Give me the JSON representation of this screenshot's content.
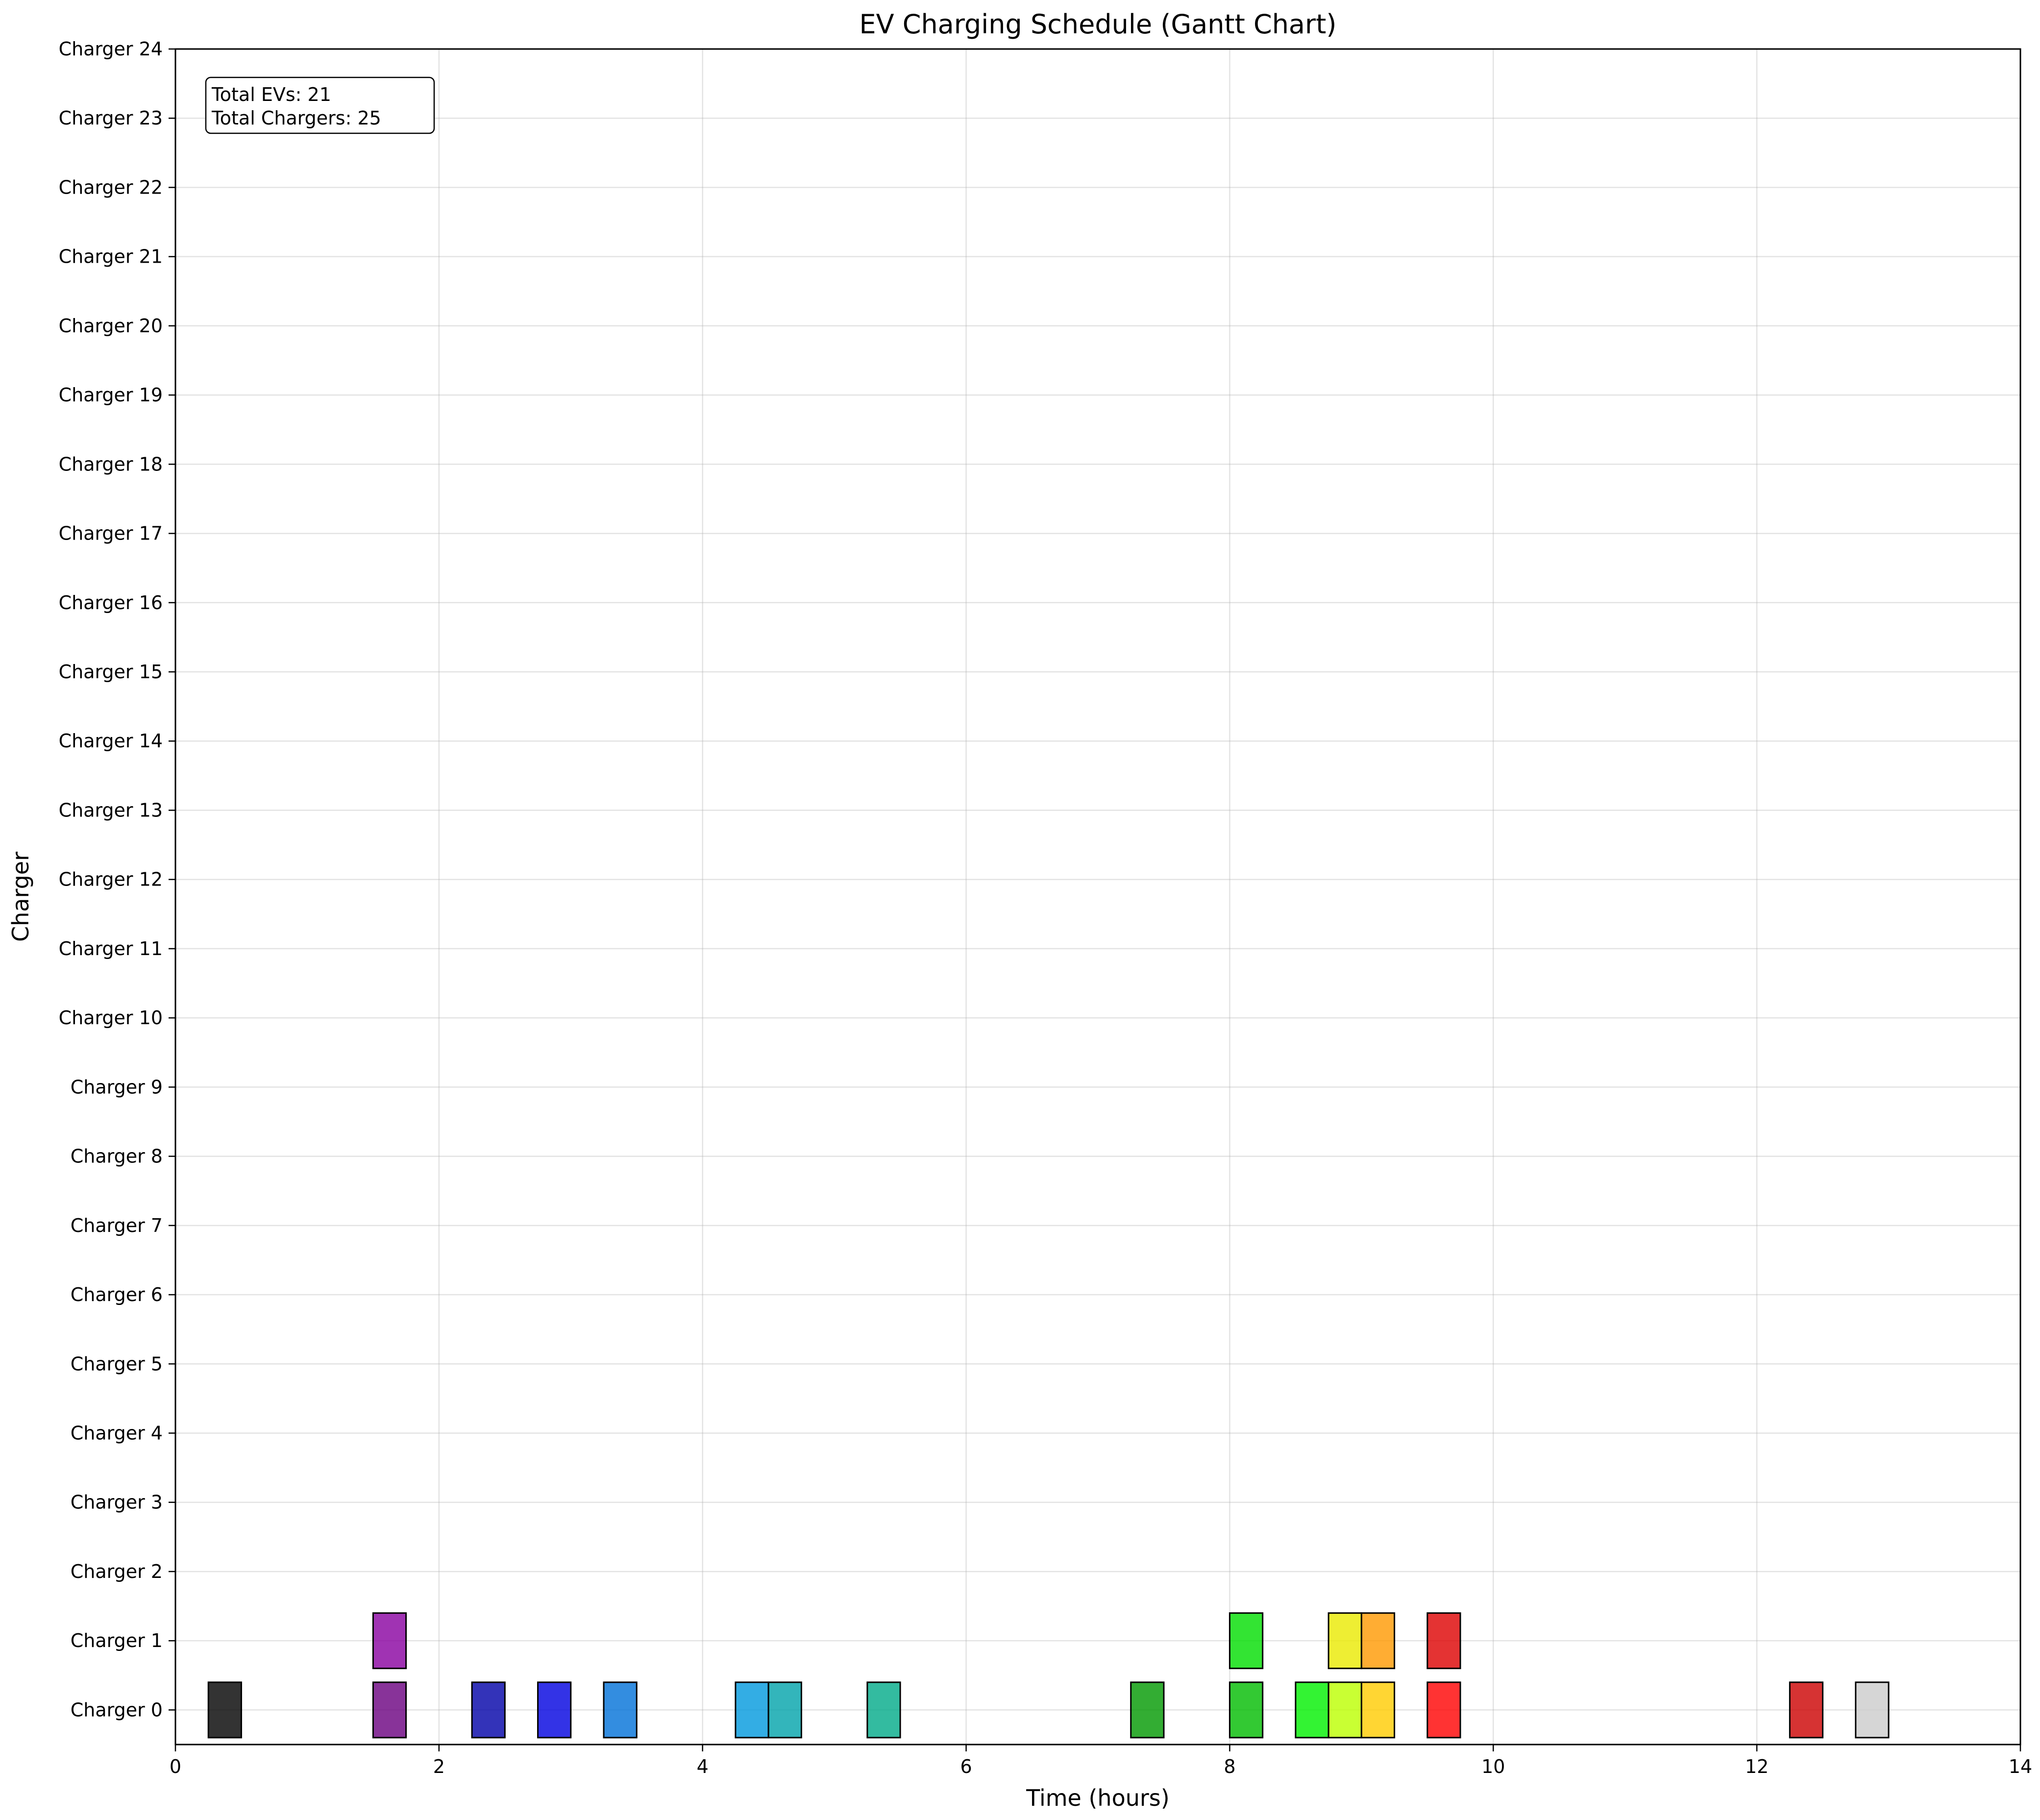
{
  "chart_data": {
    "type": "gantt",
    "title": "EV Charging Schedule (Gantt Chart)",
    "xlabel": "Time (hours)",
    "ylabel": "Charger",
    "xlim": [
      0,
      14
    ],
    "x_ticks": [
      0,
      2,
      4,
      6,
      8,
      10,
      12,
      14
    ],
    "y_categories": [
      "Charger 0",
      "Charger 1",
      "Charger 2",
      "Charger 3",
      "Charger 4",
      "Charger 5",
      "Charger 6",
      "Charger 7",
      "Charger 8",
      "Charger 9",
      "Charger 10",
      "Charger 11",
      "Charger 12",
      "Charger 13",
      "Charger 14",
      "Charger 15",
      "Charger 16",
      "Charger 17",
      "Charger 18",
      "Charger 19",
      "Charger 20",
      "Charger 21",
      "Charger 22",
      "Charger 23",
      "Charger 24"
    ],
    "grid": true,
    "annotation": {
      "position": "top-left",
      "lines": [
        "Total EVs: 21",
        "Total Chargers: 25"
      ]
    },
    "tasks": [
      {
        "charger": 0,
        "start": 0.25,
        "end": 0.5,
        "color": "#000000"
      },
      {
        "charger": 0,
        "start": 1.5,
        "end": 1.75,
        "color": "#6a0080"
      },
      {
        "charger": 1,
        "start": 1.5,
        "end": 1.75,
        "color": "#8800a0"
      },
      {
        "charger": 0,
        "start": 2.25,
        "end": 2.5,
        "color": "#0000a8"
      },
      {
        "charger": 0,
        "start": 2.75,
        "end": 3.0,
        "color": "#0000e0"
      },
      {
        "charger": 0,
        "start": 3.25,
        "end": 3.5,
        "color": "#0070d8"
      },
      {
        "charger": 0,
        "start": 4.25,
        "end": 4.5,
        "color": "#0098dd"
      },
      {
        "charger": 0,
        "start": 4.5,
        "end": 4.75,
        "color": "#00a2aa"
      },
      {
        "charger": 0,
        "start": 5.25,
        "end": 5.5,
        "color": "#00aa88"
      },
      {
        "charger": 0,
        "start": 7.25,
        "end": 7.5,
        "color": "#009900"
      },
      {
        "charger": 0,
        "start": 8.0,
        "end": 8.25,
        "color": "#00bb00"
      },
      {
        "charger": 1,
        "start": 8.0,
        "end": 8.25,
        "color": "#00dd00"
      },
      {
        "charger": 0,
        "start": 8.5,
        "end": 8.75,
        "color": "#00f000"
      },
      {
        "charger": 0,
        "start": 8.75,
        "end": 9.0,
        "color": "#bbff00"
      },
      {
        "charger": 1,
        "start": 8.75,
        "end": 9.0,
        "color": "#eaea00"
      },
      {
        "charger": 0,
        "start": 9.0,
        "end": 9.25,
        "color": "#ffcc00"
      },
      {
        "charger": 1,
        "start": 9.0,
        "end": 9.25,
        "color": "#ff9900"
      },
      {
        "charger": 0,
        "start": 9.5,
        "end": 9.75,
        "color": "#ff0000"
      },
      {
        "charger": 1,
        "start": 9.5,
        "end": 9.75,
        "color": "#dd0000"
      },
      {
        "charger": 0,
        "start": 12.25,
        "end": 12.5,
        "color": "#cc0000"
      },
      {
        "charger": 0,
        "start": 12.75,
        "end": 13.0,
        "color": "#cccccc"
      }
    ]
  }
}
